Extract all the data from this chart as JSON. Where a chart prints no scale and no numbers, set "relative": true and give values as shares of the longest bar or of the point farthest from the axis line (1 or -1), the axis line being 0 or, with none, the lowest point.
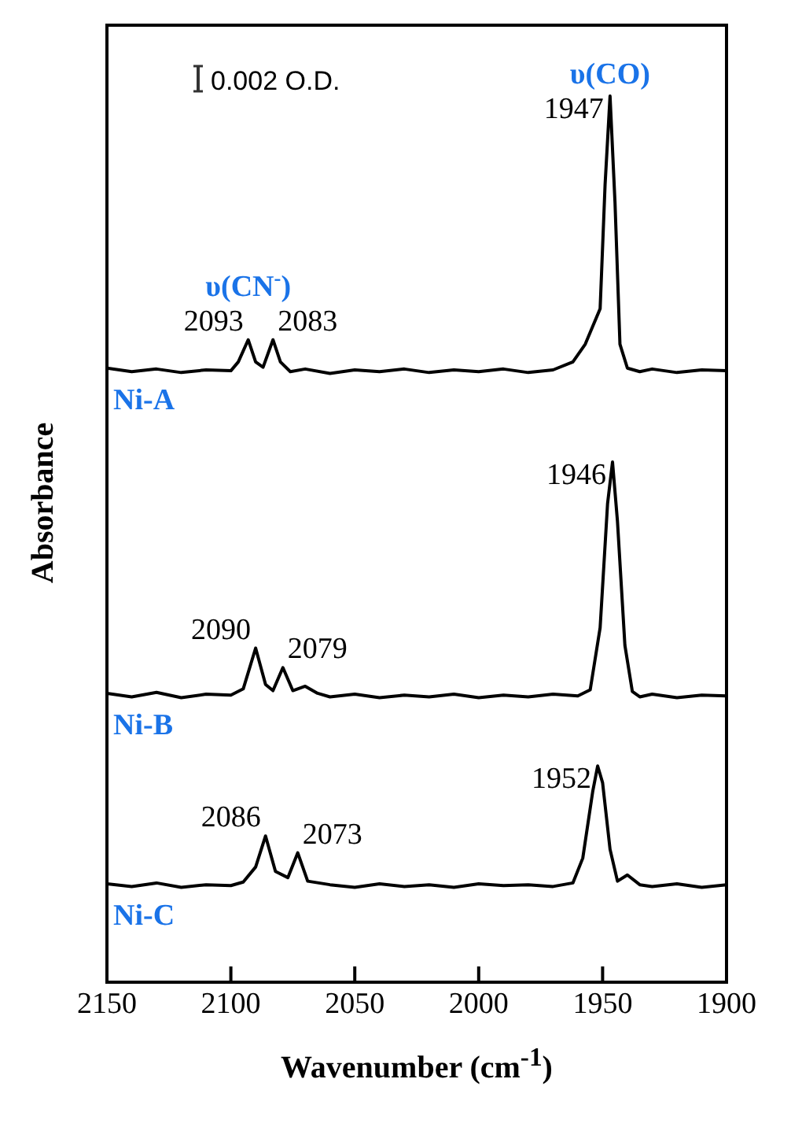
{
  "chart_data": {
    "type": "line",
    "relative": true,
    "xlabel": "Wavenumber (cm$^{-1}$)",
    "ylabel": "Absorbance",
    "xlim": [
      2150,
      1900
    ],
    "xticks": [
      2150,
      2100,
      2050,
      2000,
      1950,
      1900
    ],
    "tick_labels": "x",
    "grid": false,
    "legend": false,
    "marker": "none",
    "line_style": "solid",
    "series": [
      {
        "name": "Ni-A",
        "color": "#000000",
        "x": [
          2150,
          2140,
          2130,
          2120,
          2110,
          2100,
          2097,
          2093,
          2090,
          2087,
          2083,
          2080,
          2076,
          2070,
          2060,
          2050,
          2040,
          2030,
          2020,
          2010,
          2000,
          1990,
          1980,
          1970,
          1962,
          1957,
          1954,
          1951,
          1949,
          1947,
          1945,
          1943,
          1940,
          1935,
          1930,
          1920,
          1910,
          1900
        ],
        "values": [
          0.693,
          0.689,
          0.692,
          0.688,
          0.691,
          0.69,
          0.7,
          0.725,
          0.7,
          0.694,
          0.725,
          0.7,
          0.689,
          0.692,
          0.687,
          0.691,
          0.689,
          0.692,
          0.688,
          0.691,
          0.689,
          0.692,
          0.688,
          0.691,
          0.7,
          0.72,
          0.74,
          0.76,
          0.9,
          1.0,
          0.88,
          0.72,
          0.693,
          0.689,
          0.692,
          0.688,
          0.691,
          0.69
        ]
      },
      {
        "name": "Ni-B",
        "color": "#000000",
        "x": [
          2150,
          2140,
          2130,
          2120,
          2110,
          2100,
          2095,
          2090,
          2086,
          2083,
          2079,
          2075,
          2070,
          2065,
          2060,
          2050,
          2040,
          2030,
          2020,
          2010,
          2000,
          1990,
          1980,
          1970,
          1960,
          1955,
          1951,
          1948,
          1946,
          1944,
          1941,
          1938,
          1935,
          1930,
          1920,
          1910,
          1900
        ],
        "values": [
          0.326,
          0.322,
          0.327,
          0.321,
          0.325,
          0.324,
          0.331,
          0.377,
          0.336,
          0.329,
          0.355,
          0.329,
          0.334,
          0.326,
          0.322,
          0.325,
          0.321,
          0.324,
          0.322,
          0.325,
          0.321,
          0.324,
          0.322,
          0.325,
          0.323,
          0.33,
          0.4,
          0.54,
          0.587,
          0.52,
          0.38,
          0.328,
          0.322,
          0.325,
          0.321,
          0.324,
          0.323
        ]
      },
      {
        "name": "Ni-C",
        "color": "#000000",
        "x": [
          2150,
          2140,
          2130,
          2120,
          2110,
          2100,
          2095,
          2090,
          2086,
          2082,
          2077,
          2073,
          2069,
          2060,
          2050,
          2040,
          2030,
          2020,
          2010,
          2000,
          1990,
          1980,
          1970,
          1962,
          1958,
          1954,
          1952,
          1950,
          1947,
          1944,
          1940,
          1935,
          1930,
          1920,
          1910,
          1900
        ],
        "values": [
          0.111,
          0.108,
          0.112,
          0.107,
          0.11,
          0.109,
          0.113,
          0.13,
          0.165,
          0.125,
          0.118,
          0.146,
          0.114,
          0.11,
          0.107,
          0.111,
          0.108,
          0.11,
          0.107,
          0.111,
          0.109,
          0.11,
          0.108,
          0.112,
          0.14,
          0.215,
          0.244,
          0.225,
          0.15,
          0.114,
          0.121,
          0.11,
          0.108,
          0.111,
          0.107,
          0.11
        ]
      }
    ],
    "annotations": [
      "0.002 O.D.",
      {
        "text": "2093",
        "x": 2093,
        "y": 0.725
      },
      {
        "text": "2083",
        "x": 2083,
        "y": 0.725
      },
      {
        "text": "υ(CN$^{-}$)",
        "x": 2093,
        "y": 0.725
      },
      {
        "text": "1947",
        "x": 1947,
        "y": 1.0
      },
      {
        "text": "υ(CO)",
        "x": 1947,
        "y": 1.0
      },
      {
        "text": "2090",
        "x": 2090,
        "y": 0.377
      },
      {
        "text": "2079",
        "x": 2079,
        "y": 0.355
      },
      {
        "text": "1946",
        "x": 1946,
        "y": 0.587
      },
      {
        "text": "2086",
        "x": 2086,
        "y": 0.165
      },
      {
        "text": "2073",
        "x": 2073,
        "y": 0.146
      },
      {
        "text": "1952",
        "x": 1952,
        "y": 0.244
      }
    ]
  }
}
